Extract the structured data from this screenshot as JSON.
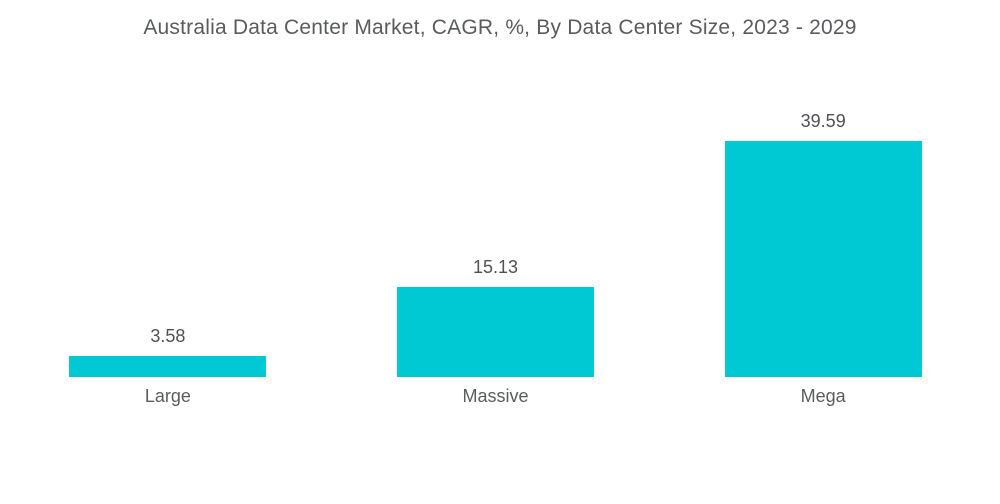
{
  "chart_data": {
    "type": "bar",
    "title": "Australia Data Center Market, CAGR, %, By Data Center Size, 2023 - 2029",
    "categories": [
      "Large",
      "Massive",
      "Mega"
    ],
    "values": [
      3.58,
      15.13,
      39.59
    ],
    "value_labels": [
      "3.58",
      "15.13",
      "39.59"
    ],
    "xlabel": "",
    "ylabel": "",
    "ylim": [
      0,
      42
    ],
    "grid": false,
    "legend": false,
    "bar_color": "#00c9d3",
    "title_color": "#595b5e",
    "value_label_color": "#4f5154",
    "category_label_color": "#5a5c5e",
    "background_color": "#ffffff"
  }
}
